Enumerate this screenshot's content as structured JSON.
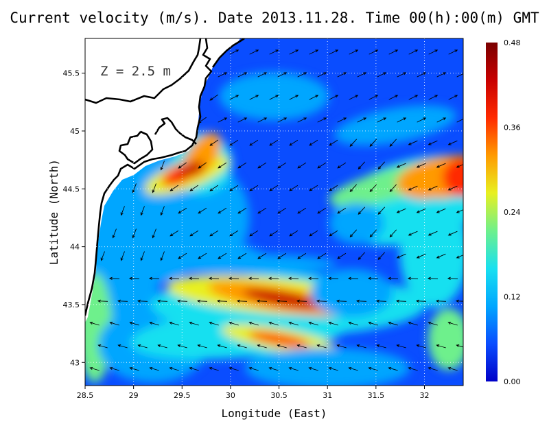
{
  "title": "Current velocity (m/s). Date 2013.11.28. Time 00(h):00(m) GMT",
  "depth_label": "Z = 2.5 m",
  "colors": {
    "land": "#ffffff",
    "coast": "#000000",
    "arrows": "#000000",
    "colormap": [
      "#0000c8",
      "#0a4dff",
      "#00a6ff",
      "#18e0f0",
      "#6ef08c",
      "#e8f020",
      "#ff9a00",
      "#ff2a00",
      "#c80000",
      "#7a0000"
    ]
  },
  "chart_data": {
    "type": "heatmap",
    "variable": "Current velocity (m/s)",
    "xlabel": "Longitude (East)",
    "ylabel": "Latitude (North)",
    "xlim": [
      28.5,
      32.4
    ],
    "ylim": [
      42.8,
      45.8
    ],
    "xticks": [
      "28.5",
      "29",
      "29.5",
      "30",
      "30.5",
      "31",
      "31.5",
      "32"
    ],
    "xtick_values": [
      28.5,
      29,
      29.5,
      30,
      30.5,
      31,
      31.5,
      32
    ],
    "yticks": [
      "43",
      "43.5",
      "44",
      "44.5",
      "45",
      "45.5"
    ],
    "ytick_values": [
      43,
      43.5,
      44,
      44.5,
      45,
      45.5
    ],
    "grid": true,
    "colorbar": {
      "min": 0.0,
      "max": 0.48,
      "ticks": [
        "0.00",
        "0.12",
        "0.24",
        "0.36",
        "0.48"
      ],
      "tick_values": [
        0.0,
        0.12,
        0.24,
        0.36,
        0.48
      ]
    },
    "speed_maxima": [
      {
        "lon": 29.6,
        "lat": 44.65,
        "speed": 0.45
      },
      {
        "lon": 30.5,
        "lat": 43.55,
        "speed": 0.45
      },
      {
        "lon": 30.5,
        "lat": 43.2,
        "speed": 0.38
      },
      {
        "lon": 32.4,
        "lat": 44.6,
        "speed": 0.38
      }
    ]
  }
}
